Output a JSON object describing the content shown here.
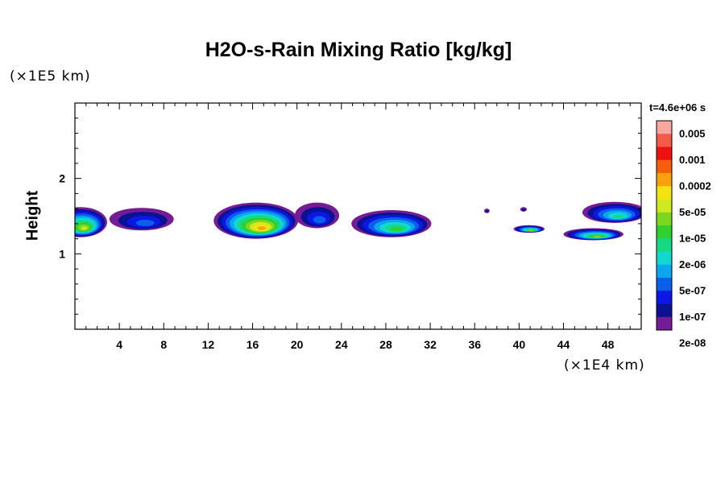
{
  "chart_data": {
    "type": "heatmap",
    "title": "H2O-s-Rain Mixing Ratio [kg/kg]",
    "ylabel": "Height",
    "y_scale_label": "(×1E5 km)",
    "x_scale_label": "(×1E4 km)",
    "time_label": "t=4.6e+06 s",
    "xlim": [
      0,
      51
    ],
    "ylim": [
      0,
      3
    ],
    "x_ticks": [
      4,
      8,
      12,
      16,
      20,
      24,
      28,
      32,
      36,
      40,
      44,
      48
    ],
    "y_ticks": [
      1,
      2
    ],
    "colorbar": {
      "labels": [
        "0.005",
        "0.001",
        "0.0002",
        "5e-05",
        "1e-05",
        "2e-06",
        "5e-07",
        "1e-07",
        "2e-08"
      ],
      "colors": [
        "#f7a6a0",
        "#f25a4a",
        "#ee1111",
        "#f65e0c",
        "#f8a10e",
        "#f5e311",
        "#cfe920",
        "#7ad821",
        "#2fd02e",
        "#16d982",
        "#10d9d0",
        "#0aa6f0",
        "#0a5ee8",
        "#0b17e3",
        "#0a1193",
        "#741c96"
      ]
    },
    "clouds": [
      {
        "x": 0.5,
        "y": 1.42,
        "rx": 2.4,
        "ry": 0.2,
        "peak": 9
      },
      {
        "x": 6.0,
        "y": 1.46,
        "rx": 2.9,
        "ry": 0.15,
        "peak": 3
      },
      {
        "x": 16.3,
        "y": 1.44,
        "rx": 3.8,
        "ry": 0.24,
        "peak": 11
      },
      {
        "x": 21.8,
        "y": 1.51,
        "rx": 2.0,
        "ry": 0.17,
        "peak": 3
      },
      {
        "x": 28.5,
        "y": 1.4,
        "rx": 3.6,
        "ry": 0.18,
        "peak": 7
      },
      {
        "x": 37.1,
        "y": 1.57,
        "rx": 0.25,
        "ry": 0.03,
        "peak": 1
      },
      {
        "x": 40.4,
        "y": 1.59,
        "rx": 0.3,
        "ry": 0.03,
        "peak": 1
      },
      {
        "x": 40.9,
        "y": 1.33,
        "rx": 1.4,
        "ry": 0.05,
        "peak": 8
      },
      {
        "x": 46.7,
        "y": 1.26,
        "rx": 2.7,
        "ry": 0.08,
        "peak": 8
      },
      {
        "x": 48.6,
        "y": 1.55,
        "rx": 2.9,
        "ry": 0.14,
        "peak": 6
      }
    ]
  }
}
